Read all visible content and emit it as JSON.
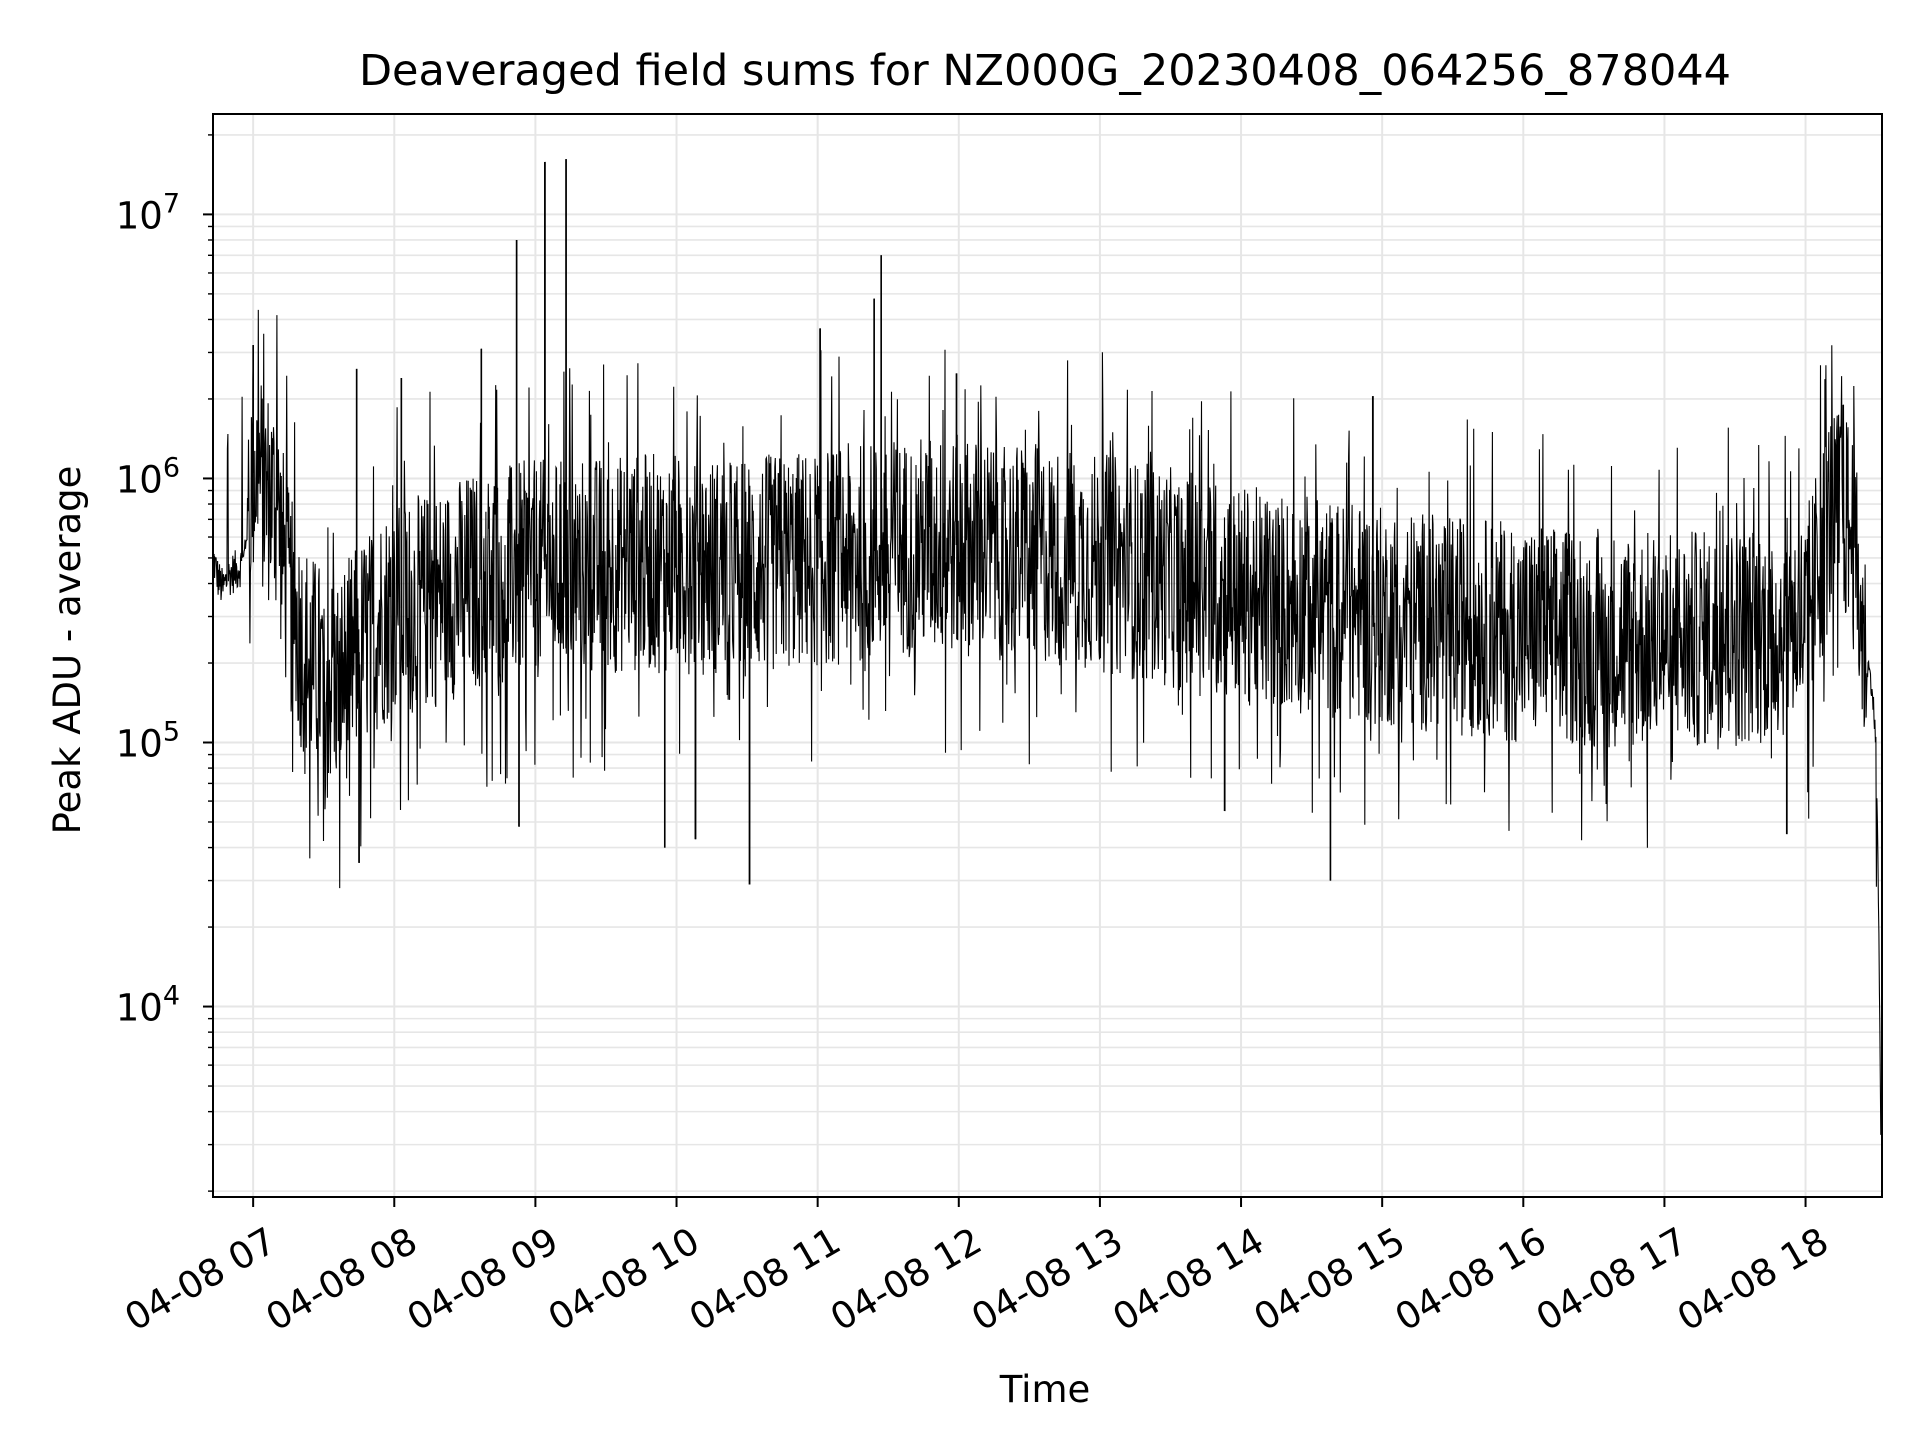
{
  "chart_data": {
    "type": "line",
    "title": "Deaveraged field sums for NZ000G_20230408_064256_878044",
    "xlabel": "Time",
    "ylabel": "Peak ADU - average",
    "yscale": "log",
    "xlim": [
      "2023-04-08 06:42:56",
      "2023-04-08 18:32:30"
    ],
    "ylim": [
      1900,
      24000000
    ],
    "x_ticks": [
      "2023-04-08 07:00",
      "2023-04-08 08:00",
      "2023-04-08 09:00",
      "2023-04-08 10:00",
      "2023-04-08 11:00",
      "2023-04-08 12:00",
      "2023-04-08 13:00",
      "2023-04-08 14:00",
      "2023-04-08 15:00",
      "2023-04-08 16:00",
      "2023-04-08 17:00",
      "2023-04-08 18:00"
    ],
    "x_tick_labels": [
      "04-08 07",
      "04-08 08",
      "04-08 09",
      "04-08 10",
      "04-08 11",
      "04-08 12",
      "04-08 13",
      "04-08 14",
      "04-08 15",
      "04-08 16",
      "04-08 17",
      "04-08 18"
    ],
    "y_ticks": [
      10000,
      100000,
      1000000,
      10000000
    ],
    "y_tick_labels": [
      {
        "base": "10",
        "exp": "4"
      },
      {
        "base": "10",
        "exp": "5"
      },
      {
        "base": "10",
        "exp": "6"
      },
      {
        "base": "10",
        "exp": "7"
      }
    ],
    "grid": "major and minor",
    "legend": "none",
    "line_color": "#000000",
    "grid_color": "#e6e6e6",
    "series": [
      {
        "x": [
          "2023-04-08 06:43",
          "2023-04-08 06:45",
          "2023-04-08 06:47",
          "2023-04-08 06:50",
          "2023-04-08 06:53",
          "2023-04-08 06:56",
          "2023-04-08 06:59",
          "2023-04-08 07:01",
          "2023-04-08 07:05",
          "2023-04-08 07:10",
          "2023-04-08 07:15",
          "2023-04-08 07:20",
          "2023-04-08 07:25",
          "2023-04-08 07:30",
          "2023-04-08 07:35",
          "2023-04-08 07:40",
          "2023-04-08 07:45",
          "2023-04-08 07:50",
          "2023-04-08 07:55",
          "2023-04-08 08:00",
          "2023-04-08 08:10",
          "2023-04-08 08:20",
          "2023-04-08 08:30",
          "2023-04-08 08:40",
          "2023-04-08 08:50",
          "2023-04-08 09:00",
          "2023-04-08 09:15",
          "2023-04-08 09:30",
          "2023-04-08 09:45",
          "2023-04-08 10:00",
          "2023-04-08 10:15",
          "2023-04-08 10:30",
          "2023-04-08 10:45",
          "2023-04-08 11:00",
          "2023-04-08 11:15",
          "2023-04-08 11:30",
          "2023-04-08 11:45",
          "2023-04-08 12:00",
          "2023-04-08 12:30",
          "2023-04-08 13:00",
          "2023-04-08 13:30",
          "2023-04-08 14:00",
          "2023-04-08 14:30",
          "2023-04-08 15:00",
          "2023-04-08 15:30",
          "2023-04-08 16:00",
          "2023-04-08 16:30",
          "2023-04-08 17:00",
          "2023-04-08 17:30",
          "2023-04-08 18:00",
          "2023-04-08 18:10",
          "2023-04-08 18:15",
          "2023-04-08 18:20",
          "2023-04-08 18:25",
          "2023-04-08 18:28",
          "2023-04-08 18:30",
          "2023-04-08 18:31",
          "2023-04-08 18:32"
        ],
        "y": [
          500000,
          420000,
          380000,
          430000,
          450000,
          480000,
          1000000,
          1100000,
          900000,
          800000,
          350000,
          250000,
          200000,
          180000,
          170000,
          190000,
          220000,
          260000,
          300000,
          320000,
          330000,
          360000,
          400000,
          420000,
          440000,
          450000,
          460000,
          470000,
          480000,
          480000,
          470000,
          460000,
          480000,
          500000,
          520000,
          540000,
          560000,
          560000,
          520000,
          480000,
          420000,
          360000,
          330000,
          300000,
          280000,
          260000,
          250000,
          240000,
          250000,
          280000,
          700000,
          800000,
          600000,
          220000,
          170000,
          100000,
          25000,
          3500
        ],
        "spikes": [
          {
            "x": "2023-04-08 07:00",
            "y": 3200000
          },
          {
            "x": "2023-04-08 07:44",
            "y": 2600000
          },
          {
            "x": "2023-04-08 07:45",
            "y": 35000
          },
          {
            "x": "2023-04-08 08:03",
            "y": 2400000
          },
          {
            "x": "2023-04-08 08:37",
            "y": 3100000
          },
          {
            "x": "2023-04-08 08:52",
            "y": 8000000
          },
          {
            "x": "2023-04-08 08:53",
            "y": 48000
          },
          {
            "x": "2023-04-08 09:04",
            "y": 15800000
          },
          {
            "x": "2023-04-08 09:13",
            "y": 16200000
          },
          {
            "x": "2023-04-08 09:55",
            "y": 40000
          },
          {
            "x": "2023-04-08 10:08",
            "y": 43000
          },
          {
            "x": "2023-04-08 10:31",
            "y": 29000
          },
          {
            "x": "2023-04-08 11:01",
            "y": 3700000
          },
          {
            "x": "2023-04-08 11:24",
            "y": 4800000
          },
          {
            "x": "2023-04-08 11:27",
            "y": 7000000
          },
          {
            "x": "2023-04-08 11:59",
            "y": 2500000
          },
          {
            "x": "2023-04-08 13:53",
            "y": 55000
          },
          {
            "x": "2023-04-08 14:38",
            "y": 30000
          },
          {
            "x": "2023-04-08 14:56",
            "y": 2050000
          },
          {
            "x": "2023-04-08 17:52",
            "y": 45000
          },
          {
            "x": "2023-04-08 18:16",
            "y": 1900000
          }
        ]
      }
    ]
  }
}
